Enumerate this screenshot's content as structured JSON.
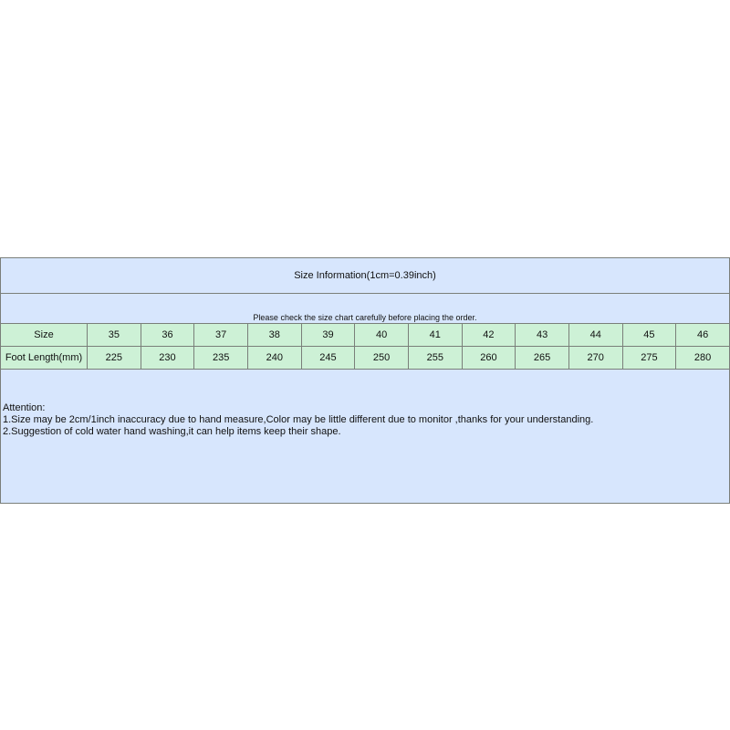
{
  "title": "Size Information(1cm=0.39inch)",
  "subtitle": "Please check the size chart carefully before placing the order.",
  "table": {
    "rows": [
      {
        "label": "Size",
        "values": [
          "35",
          "36",
          "37",
          "38",
          "39",
          "40",
          "41",
          "42",
          "43",
          "44",
          "45",
          "46"
        ]
      },
      {
        "label": "Foot Length(mm)",
        "values": [
          "225",
          "230",
          "235",
          "240",
          "245",
          "250",
          "255",
          "260",
          "265",
          "270",
          "275",
          "280"
        ]
      }
    ]
  },
  "notes": {
    "heading": "Attention:",
    "lines": [
      "1.Size may be 2cm/1inch inaccuracy due to hand measure,Color may be little different due to monitor ,thanks for your understanding.",
      "2.Suggestion of cold water hand washing,it can help items keep their shape."
    ]
  },
  "colors": {
    "header_bg": "#d7e6fd",
    "table_bg": "#cdf1d6",
    "border": "#7a7f7a"
  }
}
